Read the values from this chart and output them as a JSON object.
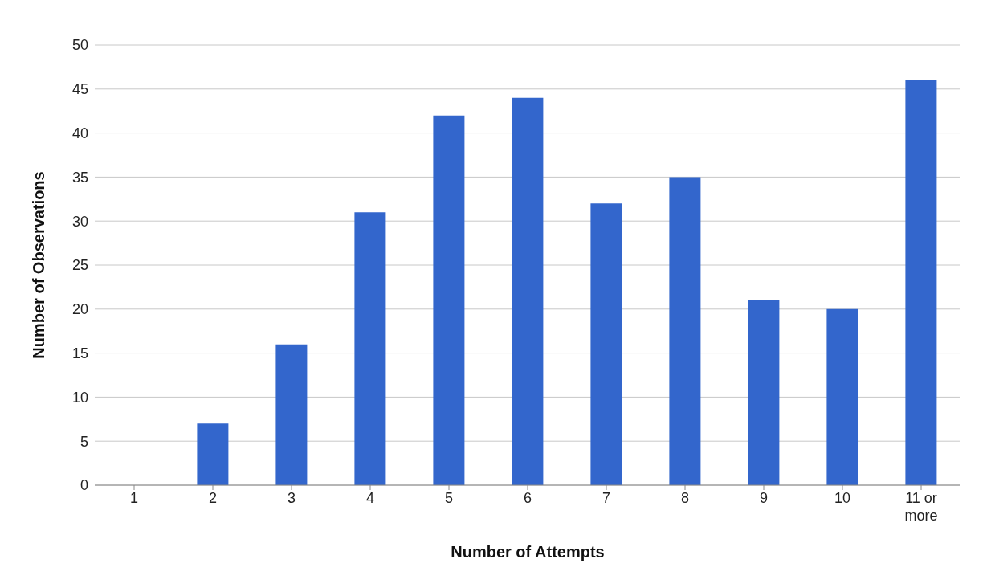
{
  "chart_data": {
    "type": "bar",
    "xlabel": "Number of Attempts",
    "ylabel": "Number of Observations",
    "categories": [
      "1",
      "2",
      "3",
      "4",
      "5",
      "6",
      "7",
      "8",
      "9",
      "10",
      "11 or more"
    ],
    "values": [
      0,
      7,
      16,
      31,
      42,
      44,
      32,
      35,
      21,
      20,
      46
    ],
    "color": "#3366cc",
    "ylim": [
      0,
      50
    ],
    "yticks": [
      0,
      5,
      10,
      15,
      20,
      25,
      30,
      35,
      40,
      45,
      50
    ],
    "grid": "y"
  }
}
